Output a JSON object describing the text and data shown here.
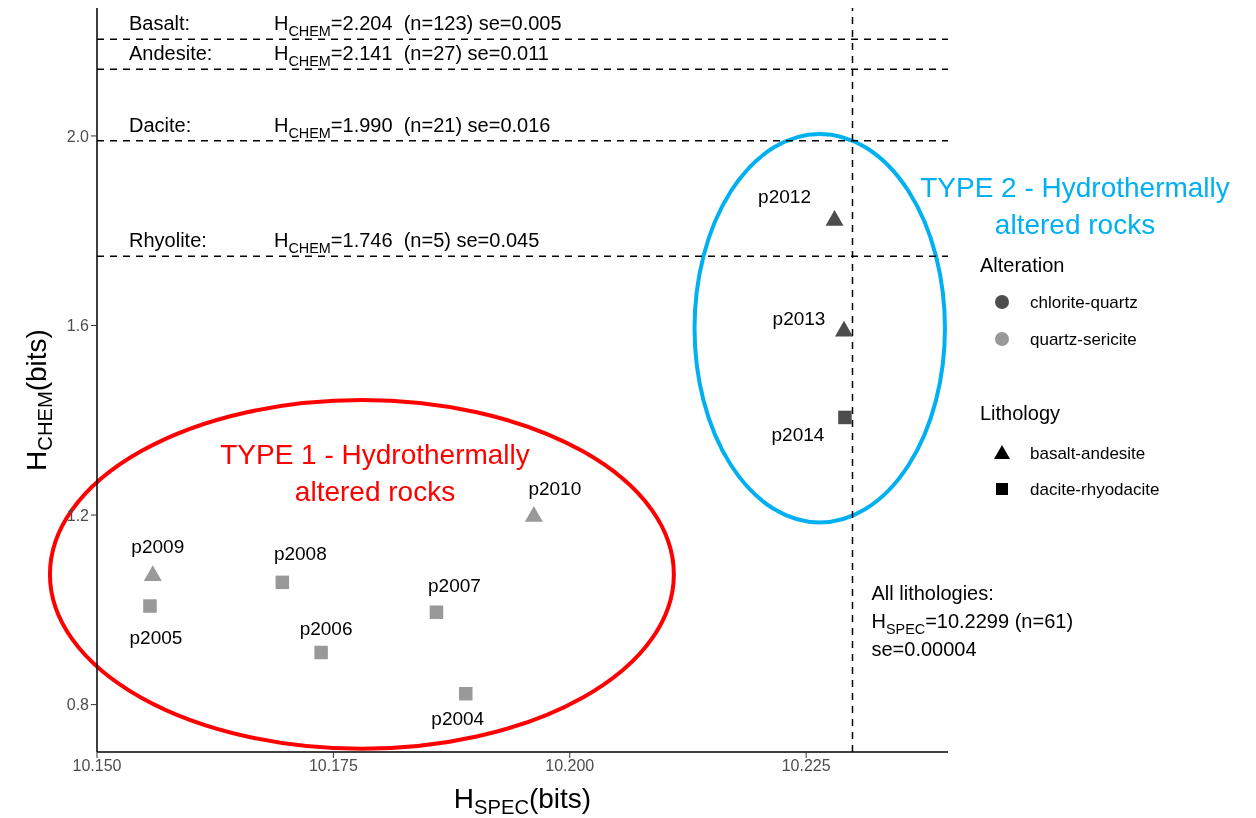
{
  "chart_data": {
    "type": "scatter",
    "xlabel": "H$_{SPEC}$(bits)",
    "ylabel": "H$_{CHEM}$(bits)",
    "legend_title": "Alteration",
    "legend": "right",
    "grid": false,
    "xlim": [
      10.15,
      10.24
    ],
    "ylim": [
      0.7,
      2.27
    ],
    "xticks": [
      {
        "value": 10.15,
        "label": "10.150"
      },
      {
        "value": 10.175,
        "label": "10.175"
      },
      {
        "value": 10.2,
        "label": "10.200"
      },
      {
        "value": 10.225,
        "label": "10.225"
      }
    ],
    "yticks": [
      0.8,
      1.2,
      1.6,
      {
        "value": 2,
        "label": "2.0"
      }
    ],
    "series": [
      {
        "name": "chlorite-quartz",
        "color": "#4d4d4d",
        "marker": "triangle",
        "x": [
          10.228,
          10.229
        ],
        "values": [
          1.825,
          1.591
        ]
      },
      {
        "color": "#4d4d4d",
        "marker": "square",
        "x": [
          10.2291
        ],
        "values": [
          1.406
        ]
      },
      {
        "name": "quartz-sericite",
        "color": "#999999",
        "marker": "triangle",
        "x": [
          10.1559,
          10.1962
        ],
        "values": [
          1.075,
          1.2
        ]
      },
      {
        "color": "#999999",
        "marker": "square",
        "x": [
          10.1556,
          10.1696,
          10.1737,
          10.1859,
          10.189
        ],
        "values": [
          1.008,
          1.058,
          0.91,
          0.995,
          0.823
        ]
      }
    ],
    "ref_lines": [
      {
        "axis": "y",
        "value": 2.204,
        "label": "Basalt: H$_{CHEM}$=2.204  (n=123) se=0.005",
        "color": "#000000",
        "line_style": "dashed"
      },
      {
        "axis": "y",
        "value": 2.141,
        "label": "Andesite: H$_{CHEM}$=2.141  (n=27) se=0.011",
        "color": "#000000",
        "line_style": "dashed"
      },
      {
        "axis": "y",
        "value": 1.99,
        "label": "Dacite: H$_{CHEM}$=1.990  (n=21) se=0.016",
        "color": "#000000",
        "line_style": "dashed"
      },
      {
        "axis": "y",
        "value": 1.746,
        "label": "Rhyolite: H$_{CHEM}$=1.746  (n=5) se=0.045",
        "color": "#000000",
        "line_style": "dashed"
      },
      {
        "axis": "x",
        "value": 10.2299,
        "label": "All lithologies:\nH$_{SPEC}$=10.2299 (n=61)\nse=0.00004",
        "color": "#000000",
        "line_style": "dashed"
      }
    ],
    "annotations": [
      "TYPE 1 - Hydrothermally altered rocks",
      "TYPE 2 - Hydrothermally altered rocks",
      "Lithology",
      "basalt-andesite",
      "dacite-rhyodacite",
      {
        "text": "p2012",
        "x": 10.228,
        "y": 1.825
      },
      {
        "text": "p2013",
        "x": 10.229,
        "y": 1.591
      },
      {
        "text": "p2014",
        "x": 10.2291,
        "y": 1.406
      },
      {
        "text": "p2010",
        "x": 10.1962,
        "y": 1.2
      },
      {
        "text": "p2009",
        "x": 10.1559,
        "y": 1.075
      },
      {
        "text": "p2005",
        "x": 10.1556,
        "y": 1.008
      },
      {
        "text": "p2008",
        "x": 10.1696,
        "y": 1.058
      },
      {
        "text": "p2006",
        "x": 10.1737,
        "y": 0.91
      },
      {
        "text": "p2007",
        "x": 10.1859,
        "y": 0.995
      },
      {
        "text": "p2004",
        "x": 10.189,
        "y": 0.823
      }
    ]
  }
}
